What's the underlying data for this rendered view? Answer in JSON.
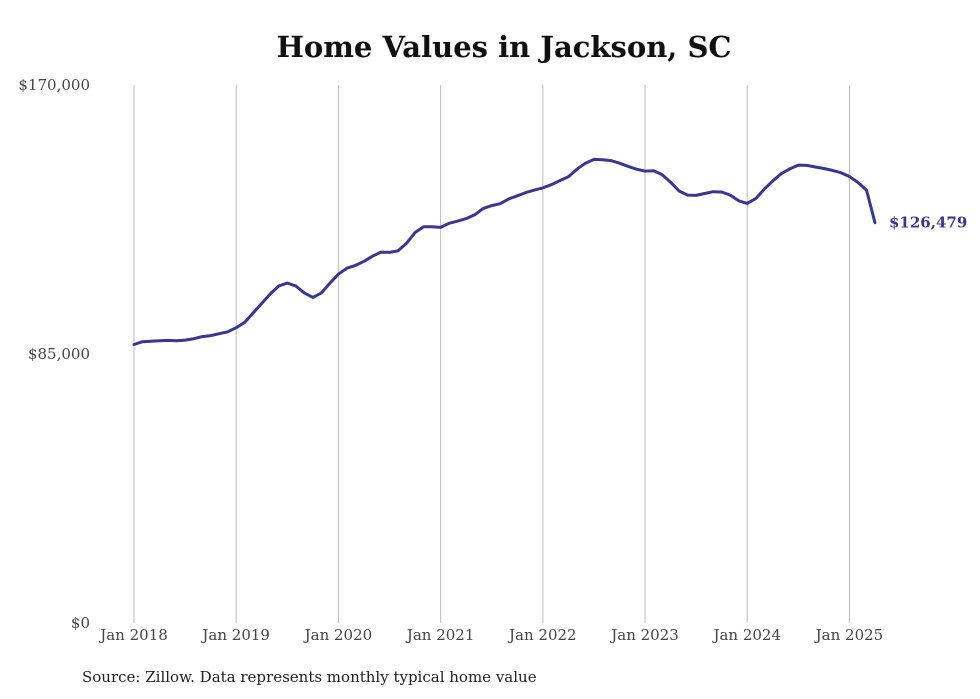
{
  "source_note": "Source: Zillow. Data represents monthly typical home value",
  "chart_data": {
    "type": "line",
    "title": "Home Values in Jackson, SC",
    "xlabel": "",
    "ylabel": "",
    "ylim": [
      0,
      170000
    ],
    "y_ticks": [
      0,
      85000,
      170000
    ],
    "y_tick_labels": [
      "$0",
      "$85,000",
      "$170,000"
    ],
    "x_ticks": [
      "2018-01",
      "2019-01",
      "2020-01",
      "2021-01",
      "2022-01",
      "2023-01",
      "2024-01",
      "2025-01"
    ],
    "x_tick_labels": [
      "Jan 2018",
      "Jan 2019",
      "Jan 2020",
      "Jan 2021",
      "Jan 2022",
      "Jan 2023",
      "Jan 2024",
      "Jan 2025"
    ],
    "grid": "vertical",
    "line_color": "#3b3593",
    "end_label": "$126,479",
    "series": [
      {
        "name": "",
        "x": [
          "2018-01",
          "2018-02",
          "2018-03",
          "2018-04",
          "2018-05",
          "2018-06",
          "2018-07",
          "2018-08",
          "2018-09",
          "2018-10",
          "2018-11",
          "2018-12",
          "2019-01",
          "2019-02",
          "2019-03",
          "2019-04",
          "2019-05",
          "2019-06",
          "2019-07",
          "2019-08",
          "2019-09",
          "2019-10",
          "2019-11",
          "2019-12",
          "2020-01",
          "2020-02",
          "2020-03",
          "2020-04",
          "2020-05",
          "2020-06",
          "2020-07",
          "2020-08",
          "2020-09",
          "2020-10",
          "2020-11",
          "2020-12",
          "2021-01",
          "2021-02",
          "2021-03",
          "2021-04",
          "2021-05",
          "2021-06",
          "2021-07",
          "2021-08",
          "2021-09",
          "2021-10",
          "2021-11",
          "2021-12",
          "2022-01",
          "2022-02",
          "2022-03",
          "2022-04",
          "2022-05",
          "2022-06",
          "2022-07",
          "2022-08",
          "2022-09",
          "2022-10",
          "2022-11",
          "2022-12",
          "2023-01",
          "2023-02",
          "2023-03",
          "2023-04",
          "2023-05",
          "2023-06",
          "2023-07",
          "2023-08",
          "2023-09",
          "2023-10",
          "2023-11",
          "2023-12",
          "2024-01",
          "2024-02",
          "2024-03",
          "2024-04",
          "2024-05",
          "2024-06",
          "2024-07",
          "2024-08",
          "2024-09",
          "2024-10",
          "2024-11",
          "2024-12",
          "2025-01",
          "2025-02",
          "2025-03",
          "2025-04"
        ],
        "values": [
          88000,
          88900,
          89000,
          89200,
          89300,
          89200,
          89400,
          89800,
          90500,
          90800,
          91400,
          92000,
          93300,
          95000,
          98000,
          101000,
          104000,
          106500,
          107400,
          106500,
          104300,
          102900,
          104300,
          107400,
          110200,
          112100,
          113000,
          114300,
          115900,
          117200,
          117100,
          117600,
          120000,
          123400,
          125200,
          125200,
          125000,
          126300,
          127000,
          127800,
          129000,
          131000,
          131900,
          132500,
          134000,
          135000,
          136000,
          136800,
          137500,
          138500,
          139800,
          141000,
          143400,
          145300,
          146500,
          146400,
          146100,
          145300,
          144300,
          143400,
          142800,
          142900,
          141700,
          139300,
          136500,
          135200,
          135100,
          135700,
          136300,
          136200,
          135200,
          133400,
          132600,
          134100,
          137100,
          139700,
          142000,
          143500,
          144700,
          144600,
          144100,
          143600,
          143000,
          142300,
          141100,
          139200,
          136800,
          126479
        ]
      }
    ]
  }
}
